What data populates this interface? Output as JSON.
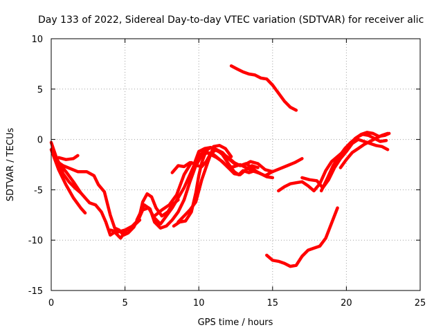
{
  "chart_data": {
    "type": "line",
    "title": "Day 133 of 2022, Sidereal Day-to-day VTEC variation (SDTVAR) for receiver alic",
    "xlabel": "GPS time / hours",
    "ylabel": "SDTVAR / TECUs",
    "xlim": [
      0,
      25
    ],
    "ylim": [
      -15,
      10
    ],
    "grid": true,
    "xticks": [
      0,
      5,
      10,
      15,
      20,
      25
    ],
    "yticks": [
      -15,
      -10,
      -5,
      0,
      5,
      10
    ],
    "color": "#ff0000",
    "series": [
      {
        "name": "trace-1",
        "x": [
          0.0,
          0.5,
          1.0,
          1.5,
          2.0,
          2.3
        ],
        "y": [
          -1.0,
          -3.0,
          -4.5,
          -5.8,
          -6.8,
          -7.3
        ]
      },
      {
        "name": "trace-2",
        "x": [
          0.0,
          0.4,
          0.8,
          1.2,
          1.6,
          2.0
        ],
        "y": [
          -0.3,
          -2.0,
          -3.4,
          -4.2,
          -4.8,
          -5.3
        ]
      },
      {
        "name": "trace-3",
        "x": [
          0.2,
          0.6,
          1.0,
          1.5,
          2.0,
          2.6,
          3.0,
          3.4,
          3.7,
          4.0,
          4.3,
          4.7,
          5.1,
          5.5,
          6.0
        ],
        "y": [
          -1.5,
          -2.5,
          -3.2,
          -4.2,
          -5.3,
          -6.3,
          -6.5,
          -7.2,
          -8.2,
          -9.5,
          -9.2,
          -9.8,
          -9.0,
          -8.7,
          -8.0
        ]
      },
      {
        "name": "trace-4",
        "x": [
          0.4,
          0.8,
          1.3,
          1.8,
          2.4,
          2.9,
          3.2,
          3.6,
          4.0,
          4.3,
          4.6,
          4.9,
          5.2,
          5.6,
          6.0,
          6.2,
          6.5,
          6.8,
          7.1,
          7.5,
          7.9,
          8.2,
          8.6
        ],
        "y": [
          -2.2,
          -2.6,
          -2.9,
          -3.2,
          -3.2,
          -3.6,
          -4.5,
          -5.2,
          -7.5,
          -8.8,
          -9.0,
          -9.5,
          -9.3,
          -8.7,
          -7.5,
          -6.2,
          -5.4,
          -5.7,
          -6.8,
          -7.6,
          -7.2,
          -6.5,
          -6.0
        ]
      },
      {
        "name": "trace-5",
        "x": [
          0.5,
          1.0,
          1.5,
          1.8
        ],
        "y": [
          -1.8,
          -2.0,
          -1.9,
          -1.6
        ]
      },
      {
        "name": "trace-6",
        "x": [
          4.0,
          4.5,
          5.0,
          5.5,
          5.9,
          6.2,
          6.6,
          7.0,
          7.4,
          7.8,
          8.2,
          8.6,
          9.0,
          9.4,
          9.7,
          10.0,
          10.4,
          10.8,
          11.2,
          11.6,
          12.0,
          12.4,
          12.8,
          13.2,
          13.6,
          14.0
        ],
        "y": [
          -9.0,
          -9.2,
          -9.0,
          -8.6,
          -8.0,
          -7.0,
          -6.8,
          -7.8,
          -8.4,
          -7.6,
          -6.8,
          -5.8,
          -4.8,
          -3.5,
          -2.5,
          -1.6,
          -1.2,
          -1.5,
          -1.8,
          -2.2,
          -2.8,
          -3.4,
          -3.5,
          -3.0,
          -2.6,
          -2.8
        ]
      },
      {
        "name": "trace-7",
        "x": [
          5.8,
          6.3,
          6.7,
          7.0,
          7.4,
          7.8,
          8.2,
          8.6,
          9.0,
          9.4,
          9.8,
          10.2,
          10.6,
          11.0,
          11.5,
          12.0,
          12.4,
          12.8,
          13.2,
          13.6,
          14.0,
          14.5,
          15.0,
          15.5,
          16.0,
          16.5,
          17.0
        ],
        "y": [
          -8.0,
          -6.5,
          -6.9,
          -8.2,
          -8.8,
          -8.6,
          -8.0,
          -7.2,
          -6.0,
          -4.2,
          -2.6,
          -1.6,
          -1.3,
          -1.5,
          -2.1,
          -2.8,
          -2.7,
          -2.5,
          -2.8,
          -3.1,
          -3.3,
          -3.6,
          -3.2,
          -2.9,
          -2.6,
          -2.3,
          -1.9
        ]
      },
      {
        "name": "trace-8",
        "x": [
          7.0,
          7.5,
          8.0,
          8.5,
          9.0,
          9.5,
          9.9,
          10.2,
          10.5,
          10.8,
          11.2,
          11.6,
          12.0,
          12.5,
          13.0,
          13.5,
          14.0,
          14.5,
          15.0
        ],
        "y": [
          -7.6,
          -7.0,
          -6.5,
          -5.5,
          -3.5,
          -2.3,
          -2.6,
          -2.7,
          -2.2,
          -1.4,
          -1.0,
          -1.3,
          -1.9,
          -2.5,
          -2.6,
          -2.2,
          -2.4,
          -3.0,
          -3.2
        ]
      },
      {
        "name": "trace-9",
        "x": [
          8.2,
          8.6,
          9.0,
          9.4,
          9.7,
          10.0,
          10.4,
          10.8,
          11.2,
          11.6,
          12.0,
          12.4,
          12.8,
          13.2,
          13.6,
          14.0
        ],
        "y": [
          -3.3,
          -2.6,
          -2.7,
          -2.3,
          -2.4,
          -1.2,
          -0.9,
          -0.8,
          -1.1,
          -1.4,
          -1.8,
          -2.3,
          -2.6,
          -2.4,
          -2.8,
          -3.3
        ]
      },
      {
        "name": "trace-10",
        "x": [
          8.3,
          8.7,
          9.1,
          9.5,
          9.8,
          10.0,
          10.2,
          10.5,
          10.8,
          11.2,
          11.6,
          12.0,
          12.4,
          12.7,
          13.0,
          13.4,
          13.8,
          14.2,
          14.6,
          15.0
        ],
        "y": [
          -8.6,
          -8.2,
          -8.1,
          -7.2,
          -5.3,
          -3.6,
          -2.3,
          -1.1,
          -0.8,
          -1.0,
          -1.5,
          -2.4,
          -3.2,
          -3.5,
          -3.1,
          -3.3,
          -3.1,
          -3.4,
          -3.7,
          -3.8
        ]
      },
      {
        "name": "trace-11",
        "x": [
          8.6,
          9.0,
          9.4,
          9.8,
          10.2,
          10.6,
          11.0,
          11.4,
          11.8,
          12.2
        ],
        "y": [
          -8.2,
          -7.6,
          -7.0,
          -6.2,
          -4.0,
          -2.3,
          -0.7,
          -0.6,
          -0.9,
          -1.7
        ]
      },
      {
        "name": "trace-12",
        "x": [
          12.2,
          12.6,
          13.0,
          13.4,
          13.8,
          14.2,
          14.6,
          15.0,
          15.4,
          15.8,
          16.2,
          16.6
        ],
        "y": [
          7.3,
          7.0,
          6.7,
          6.5,
          6.4,
          6.1,
          6.0,
          5.4,
          4.6,
          3.8,
          3.2,
          2.9
        ]
      },
      {
        "name": "trace-13",
        "x": [
          15.4,
          15.8,
          16.2,
          16.6,
          17.0,
          17.4,
          17.8,
          18.2,
          18.6,
          19.0,
          19.4,
          19.8,
          20.2
        ],
        "y": [
          -5.1,
          -4.7,
          -4.4,
          -4.3,
          -4.2,
          -4.6,
          -5.1,
          -4.4,
          -3.1,
          -2.2,
          -1.7,
          -1.2,
          -0.8
        ]
      },
      {
        "name": "trace-14",
        "x": [
          17.0,
          17.5,
          18.0,
          18.4,
          18.8,
          19.2,
          19.6,
          20.0,
          20.4,
          20.8,
          21.2,
          21.6,
          22.0,
          22.4,
          22.8
        ],
        "y": [
          -3.8,
          -4.0,
          -4.1,
          -4.8,
          -4.0,
          -2.8,
          -1.9,
          -1.2,
          -0.4,
          0.0,
          -0.2,
          -0.4,
          -0.6,
          -0.7,
          -1.0
        ]
      },
      {
        "name": "trace-15",
        "x": [
          18.3,
          18.7,
          19.1,
          19.5,
          19.9,
          20.3,
          20.7,
          21.1,
          21.5,
          21.9,
          22.3,
          22.7
        ],
        "y": [
          -5.1,
          -3.9,
          -2.6,
          -1.7,
          -0.9,
          -0.3,
          0.2,
          0.5,
          0.4,
          0.1,
          -0.2,
          -0.1
        ]
      },
      {
        "name": "trace-16",
        "x": [
          19.0,
          19.4,
          19.8,
          20.2,
          20.6,
          21.0,
          21.4,
          21.8,
          22.2,
          22.6,
          22.9
        ],
        "y": [
          -3.0,
          -2.2,
          -1.4,
          -0.6,
          0.1,
          0.5,
          0.7,
          0.6,
          0.3,
          0.4,
          0.6
        ]
      },
      {
        "name": "trace-17",
        "x": [
          19.6,
          20.0,
          20.4,
          20.8,
          21.2,
          21.6,
          22.0,
          22.4,
          22.8
        ],
        "y": [
          -2.8,
          -2.0,
          -1.3,
          -0.9,
          -0.5,
          -0.2,
          0.1,
          0.4,
          0.6
        ]
      },
      {
        "name": "trace-18",
        "x": [
          14.6,
          15.0,
          15.4,
          15.8,
          16.2,
          16.6,
          17.0,
          17.4,
          17.8,
          18.2,
          18.6,
          19.0,
          19.4
        ],
        "y": [
          -11.5,
          -12.0,
          -12.1,
          -12.3,
          -12.6,
          -12.5,
          -11.6,
          -11.0,
          -10.8,
          -10.6,
          -9.8,
          -8.3,
          -6.8
        ]
      }
    ]
  }
}
